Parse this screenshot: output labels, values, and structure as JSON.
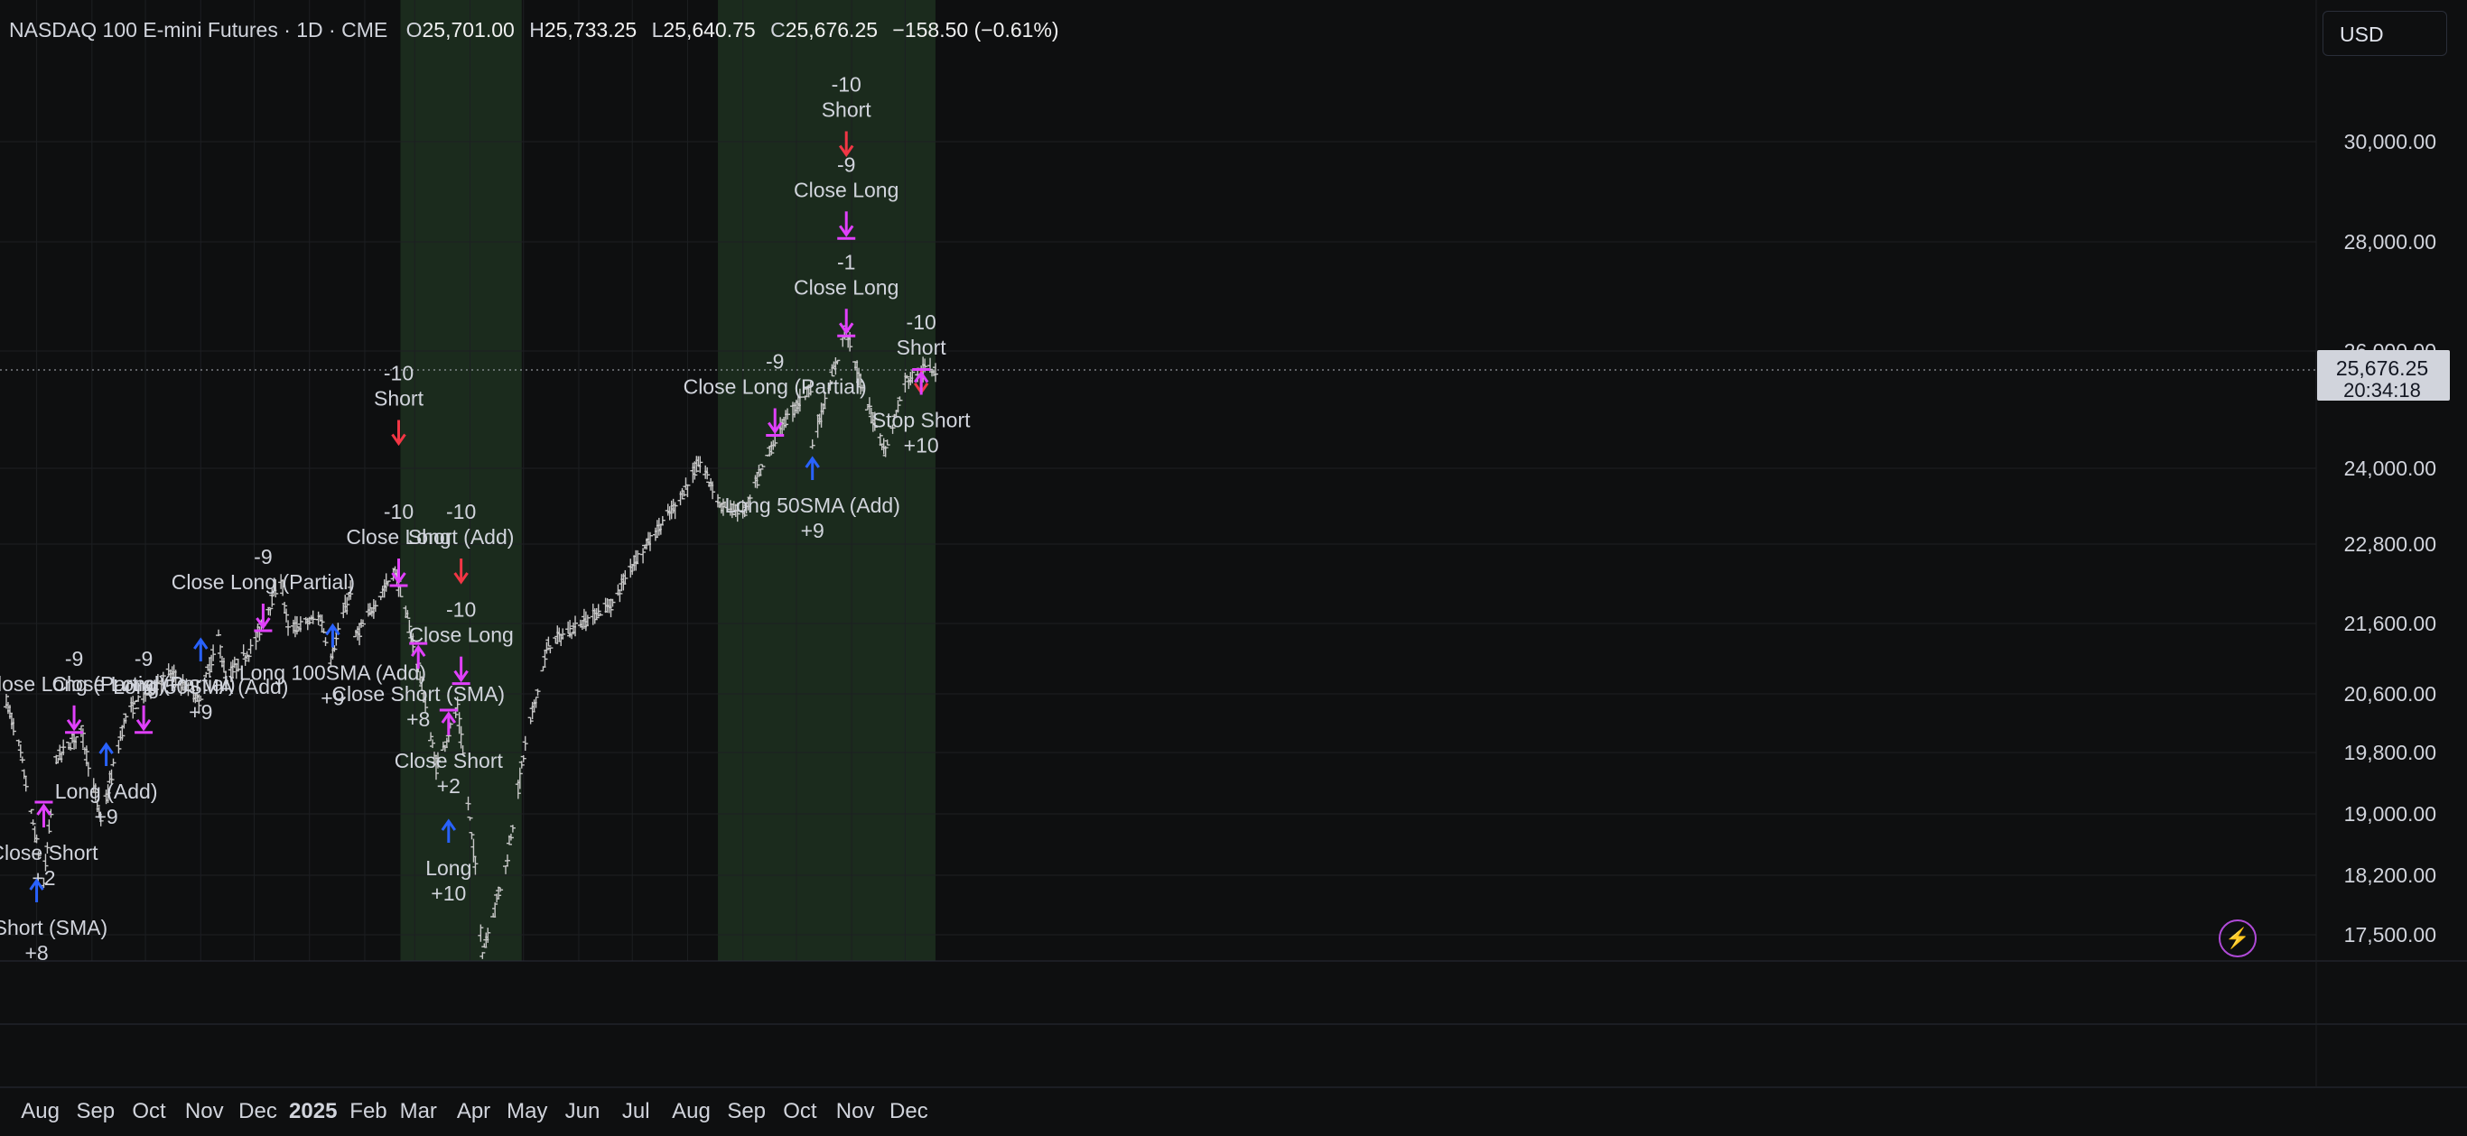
{
  "header": {
    "symbol": "NASDAQ 100 E-mini Futures · 1D · CME",
    "open_label": "O",
    "open": "25,701.00",
    "high_label": "H",
    "high": "25,733.25",
    "low_label": "L",
    "low": "25,640.75",
    "close_label": "C",
    "close": "25,676.25",
    "change": "−158.50 (−0.61%)"
  },
  "currency": "USD",
  "price_tag": {
    "price": "25,676.25",
    "countdown": "20:34:18"
  },
  "colors": {
    "background": "#0e0f10",
    "session_shade": "#1b2b1d",
    "bar": "#c8c8c8",
    "long_arrow": "#2962ff",
    "short_arrow": "#f23645",
    "close_arrow": "#e040fb",
    "grid": "#1d1f22",
    "text": "#d1d4dc"
  },
  "chart_data": {
    "type": "ohlc",
    "x_tick_labels": [
      "Aug",
      "Sep",
      "Oct",
      "Nov",
      "Dec",
      "2025",
      "Feb",
      "Mar",
      "Apr",
      "May",
      "Jun",
      "Jul",
      "Aug",
      "Sep",
      "Oct",
      "Nov",
      "Dec"
    ],
    "y_tick_labels": [
      "30,000.00",
      "28,000.00",
      "26,000.00",
      "24,000.00",
      "22,800.00",
      "21,600.00",
      "20,600.00",
      "19,800.00",
      "19,000.00",
      "18,200.00",
      "17,500.00"
    ],
    "last_price": 25676.25,
    "shaded_periods": [
      [
        "2025-02-21",
        "2025-04-30"
      ],
      [
        "2025-08-18",
        "2025-12-18"
      ]
    ],
    "price_path": [
      [
        "2024-07-15",
        20500
      ],
      [
        "2024-07-22",
        19900
      ],
      [
        "2024-08-05",
        18100
      ],
      [
        "2024-08-12",
        19700
      ],
      [
        "2024-08-26",
        20100
      ],
      [
        "2024-09-06",
        18900
      ],
      [
        "2024-09-20",
        20300
      ],
      [
        "2024-10-01",
        20600
      ],
      [
        "2024-10-15",
        20900
      ],
      [
        "2024-10-31",
        20500
      ],
      [
        "2024-11-11",
        21400
      ],
      [
        "2024-11-15",
        20800
      ],
      [
        "2024-12-01",
        21300
      ],
      [
        "2024-12-16",
        22300
      ],
      [
        "2024-12-20",
        21500
      ],
      [
        "2025-01-07",
        21700
      ],
      [
        "2025-01-13",
        21100
      ],
      [
        "2025-01-24",
        22100
      ],
      [
        "2025-01-27",
        21400
      ],
      [
        "2025-02-18",
        22400
      ],
      [
        "2025-03-03",
        21000
      ],
      [
        "2025-03-13",
        19600
      ],
      [
        "2025-03-25",
        20400
      ],
      [
        "2025-04-04",
        18300
      ],
      [
        "2025-04-08",
        17300
      ],
      [
        "2025-04-21",
        18300
      ],
      [
        "2025-05-02",
        19900
      ],
      [
        "2025-05-15",
        21300
      ],
      [
        "2025-06-02",
        21600
      ],
      [
        "2025-06-20",
        21900
      ],
      [
        "2025-07-01",
        22500
      ],
      [
        "2025-07-25",
        23400
      ],
      [
        "2025-08-08",
        24100
      ],
      [
        "2025-08-20",
        23400
      ],
      [
        "2025-09-02",
        23300
      ],
      [
        "2025-09-22",
        24700
      ],
      [
        "2025-10-09",
        25400
      ],
      [
        "2025-10-10",
        24400
      ],
      [
        "2025-10-29",
        26400
      ],
      [
        "2025-11-07",
        25300
      ],
      [
        "2025-11-20",
        24300
      ],
      [
        "2025-12-01",
        25500
      ],
      [
        "2025-12-12",
        25700
      ],
      [
        "2025-12-18",
        25676
      ]
    ],
    "trade_labels": [
      {
        "date": "2024-08-05",
        "price": 18400,
        "side": "close",
        "dir": "up",
        "lines": [
          "Close Short",
          "+2"
        ]
      },
      {
        "date": "2024-08-01",
        "price": 17500,
        "side": "long",
        "dir": "up",
        "lines": [
          "se Short (SMA)",
          "+8"
        ]
      },
      {
        "date": "2024-08-22",
        "price": 21000,
        "side": "close",
        "dir": "down",
        "lines": [
          "-9",
          "Close Long (Partial)"
        ]
      },
      {
        "date": "2024-09-09",
        "price": 19200,
        "side": "long",
        "dir": "up",
        "lines": [
          "Long (Add)",
          "+9"
        ]
      },
      {
        "date": "2024-09-30",
        "price": 21000,
        "side": "close",
        "dir": "down",
        "lines": [
          "-9",
          "Close Long (Partial)"
        ]
      },
      {
        "date": "2024-11-01",
        "price": 20600,
        "side": "long",
        "dir": "up",
        "lines": [
          "Long 50SMA (Add)",
          "+9"
        ]
      },
      {
        "date": "2024-12-06",
        "price": 22500,
        "side": "close",
        "dir": "down",
        "lines": [
          "-9",
          "Close Long (Partial)"
        ]
      },
      {
        "date": "2025-01-14",
        "price": 20800,
        "side": "long",
        "dir": "up",
        "lines": [
          "Long 100SMA (Add)",
          "+9"
        ]
      },
      {
        "date": "2025-02-20",
        "price": 25500,
        "side": "short",
        "dir": "down",
        "lines": [
          "-10",
          "Short"
        ]
      },
      {
        "date": "2025-02-20",
        "price": 23200,
        "side": "close",
        "dir": "down",
        "lines": [
          "-10",
          "Close Long"
        ]
      },
      {
        "date": "2025-03-03",
        "price": 20500,
        "side": "close",
        "dir": "up",
        "lines": [
          "Close Short (SMA)",
          "+8"
        ]
      },
      {
        "date": "2025-03-20",
        "price": 19600,
        "side": "close",
        "dir": "up",
        "lines": [
          "Close Short",
          "+2"
        ]
      },
      {
        "date": "2025-03-20",
        "price": 18200,
        "side": "long",
        "dir": "up",
        "lines": [
          "Long",
          "+10"
        ]
      },
      {
        "date": "2025-03-27",
        "price": 23200,
        "side": "short",
        "dir": "down",
        "lines": [
          "-10",
          "Short (Add)"
        ]
      },
      {
        "date": "2025-03-27",
        "price": 21700,
        "side": "close",
        "dir": "down",
        "lines": [
          "-10",
          "Close Long"
        ]
      },
      {
        "date": "2025-09-19",
        "price": 25700,
        "side": "close",
        "dir": "down",
        "lines": [
          "-9",
          "Close Long (Partial)"
        ]
      },
      {
        "date": "2025-10-10",
        "price": 23300,
        "side": "long",
        "dir": "up",
        "lines": [
          "Long 50SMA (Add)",
          "+9"
        ]
      },
      {
        "date": "2025-10-29",
        "price": 31000,
        "side": "short",
        "dir": "down",
        "lines": [
          "-10",
          "Short"
        ]
      },
      {
        "date": "2025-10-29",
        "price": 29400,
        "side": "close",
        "dir": "down",
        "lines": [
          "-9",
          "Close Long"
        ]
      },
      {
        "date": "2025-10-29",
        "price": 27500,
        "side": "close",
        "dir": "down",
        "lines": [
          "-1",
          "Close Long"
        ]
      },
      {
        "date": "2025-12-10",
        "price": 26400,
        "side": "short",
        "dir": "down",
        "lines": [
          "-10",
          "Short"
        ]
      },
      {
        "date": "2025-12-10",
        "price": 24700,
        "side": "close",
        "dir": "up",
        "lines": [
          "Stop Short",
          "+10"
        ]
      }
    ]
  }
}
